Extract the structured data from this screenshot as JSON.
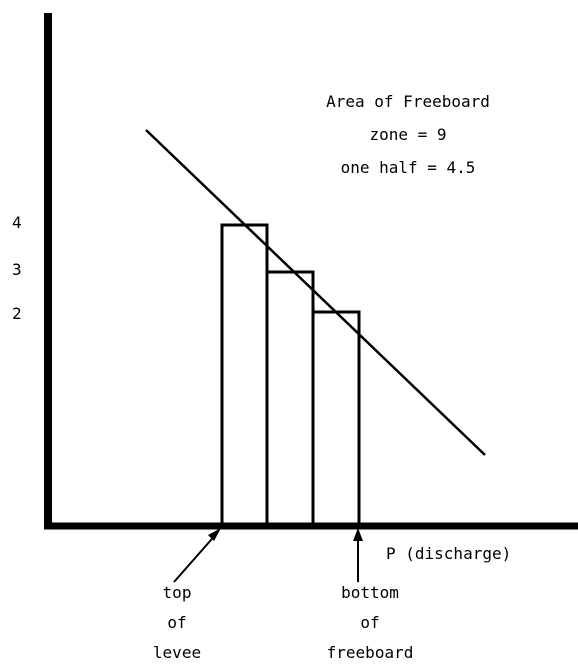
{
  "annotation": {
    "line1": "Area of Freeboard",
    "line2": "zone = 9",
    "line3": "one half = 4.5"
  },
  "y_tick_labels": [
    "4",
    "3",
    "2"
  ],
  "x_axis_label": "P (discharge)",
  "callouts": {
    "left": [
      "top",
      "of",
      "levee"
    ],
    "right": [
      "bottom",
      "of",
      "freeboard"
    ]
  },
  "bars": [
    {
      "height": 4
    },
    {
      "height": 3
    },
    {
      "height": 2
    }
  ],
  "colors": {
    "ink": "#000000",
    "background": "#ffffff"
  }
}
